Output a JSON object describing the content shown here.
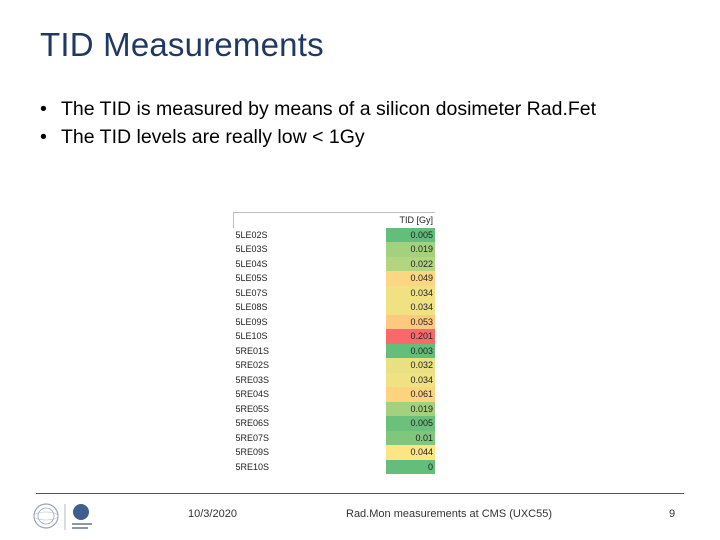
{
  "slide": {
    "title": "TID Measurements",
    "bullets": [
      "The TID is measured by means of a silicon dosimeter Rad.Fet",
      "The TID levels are really low < 1Gy"
    ],
    "bullet_glyph": "•"
  },
  "table": {
    "header": "TID [Gy]",
    "rows": [
      {
        "loc": "5LE02S",
        "val": "0.005",
        "color": "#63be7b"
      },
      {
        "loc": "5LE03S",
        "val": "0.019",
        "color": "#a4d17e"
      },
      {
        "loc": "5LE04S",
        "val": "0.022",
        "color": "#b1d580"
      },
      {
        "loc": "5LE05S",
        "val": "0.049",
        "color": "#fcd682"
      },
      {
        "loc": "5LE07S",
        "val": "0.034",
        "color": "#f0e283"
      },
      {
        "loc": "5LE08S",
        "val": "0.034",
        "color": "#f0e283"
      },
      {
        "loc": "5LE09S",
        "val": "0.053",
        "color": "#fcc97f"
      },
      {
        "loc": "5LE10S",
        "val": "0.201",
        "color": "#f8696b"
      },
      {
        "loc": "5RE01S",
        "val": "0.003",
        "color": "#63be7b"
      },
      {
        "loc": "5RE02S",
        "val": "0.032",
        "color": "#e8e082"
      },
      {
        "loc": "5RE03S",
        "val": "0.034",
        "color": "#f0e283"
      },
      {
        "loc": "5RE04S",
        "val": "0.061",
        "color": "#fcd37f"
      },
      {
        "loc": "5RE05S",
        "val": "0.019",
        "color": "#a4d17e"
      },
      {
        "loc": "5RE06S",
        "val": "0.005",
        "color": "#6bc07b"
      },
      {
        "loc": "5RE07S",
        "val": "0.01",
        "color": "#80c67d"
      },
      {
        "loc": "5RE09S",
        "val": "0.044",
        "color": "#fde583"
      },
      {
        "loc": "5RE10S",
        "val": "0",
        "color": "#63be7b"
      }
    ]
  },
  "footer": {
    "date": "10/3/2020",
    "text": "Rad.Mon measurements at CMS (UXC55)",
    "page": "9"
  },
  "logos": {
    "left": "cern-logo-icon",
    "right": "en-department-logo-icon"
  }
}
